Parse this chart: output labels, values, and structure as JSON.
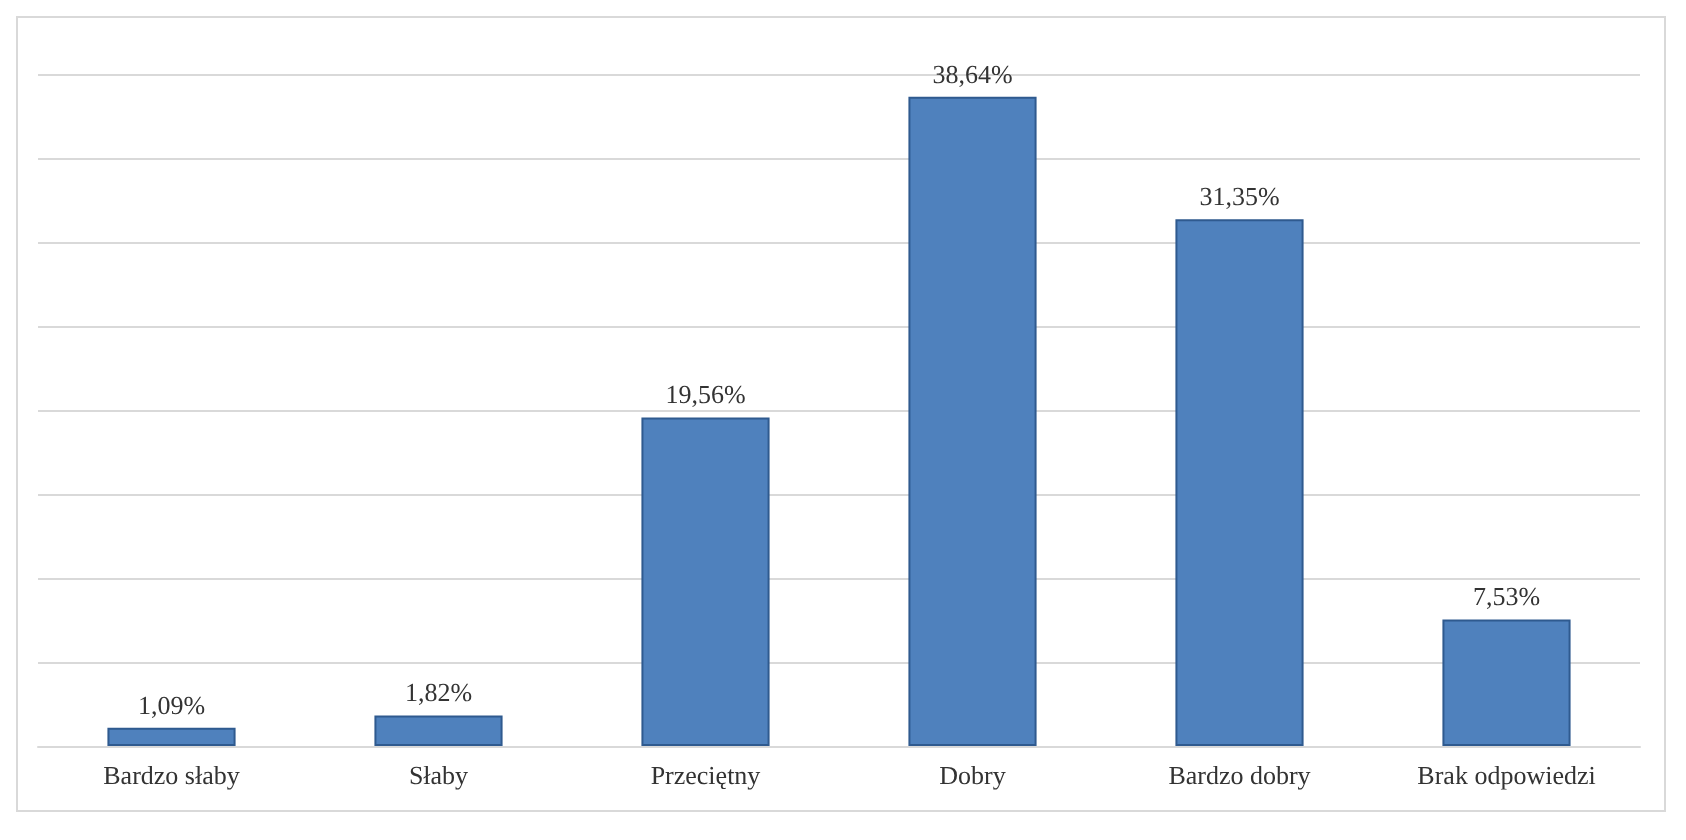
{
  "chart_data": {
    "type": "bar",
    "categories": [
      "Bardzo słaby",
      "Słaby",
      "Przeciętny",
      "Dobry",
      "Bardzo dobry",
      "Brak odpowiedzi"
    ],
    "values": [
      1.09,
      1.82,
      19.56,
      38.64,
      31.35,
      7.53
    ],
    "value_labels": [
      "1,09%",
      "1,82%",
      "19,56%",
      "38,64%",
      "31,35%",
      "7,53%"
    ],
    "color": "#4f81bd",
    "ylim": [
      0,
      40
    ],
    "yticks": [
      {
        "value": 0,
        "label": null
      },
      {
        "value": 5,
        "label": null
      },
      {
        "value": 10,
        "label": null
      },
      {
        "value": 15,
        "label": null
      },
      {
        "value": 20,
        "label": null
      },
      {
        "value": 25,
        "label": null
      },
      {
        "value": 30,
        "label": null
      },
      {
        "value": 35,
        "label": null
      },
      {
        "value": 40,
        "label": null
      }
    ],
    "grid": true,
    "tick_labels": "x"
  }
}
